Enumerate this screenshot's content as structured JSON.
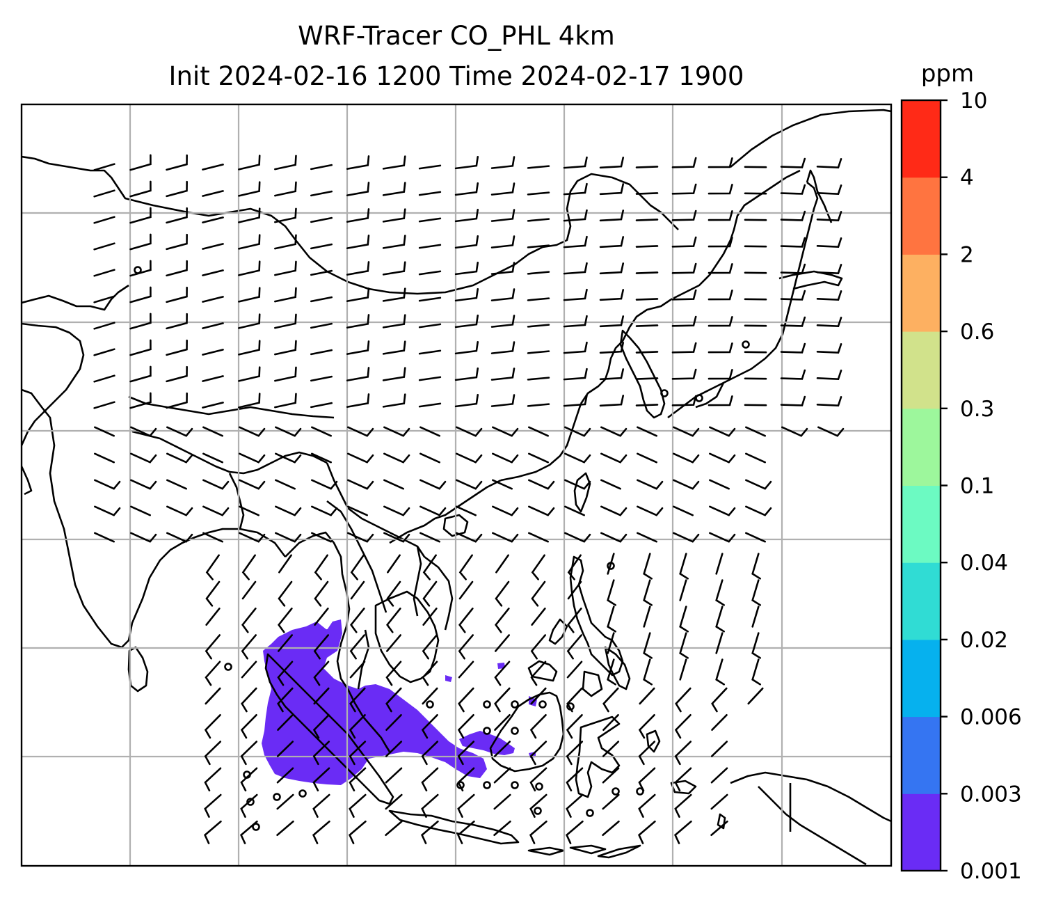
{
  "title": {
    "line1": "WRF-Tracer CO_PHL 4km",
    "line2": "Init 2024-02-16 1200 Time 2024-02-17 1900"
  },
  "colorbar": {
    "unit": "ppm",
    "levels": [
      "0.001",
      "0.003",
      "0.006",
      "0.02",
      "0.04",
      "0.1",
      "0.3",
      "0.6",
      "2",
      "4",
      "10"
    ],
    "colors": [
      "#6a2cf5",
      "#3575f2",
      "#06b1ee",
      "#30dcd4",
      "#6cfac2",
      "#9df79c",
      "#d1e28b",
      "#fdb061",
      "#ff7440",
      "#ff2a17"
    ]
  },
  "map": {
    "projection": "lambert-conformal",
    "gridlines": true,
    "coastlines": true,
    "wind_barbs": true,
    "tracer_plume_color": "#6a2cf5"
  }
}
